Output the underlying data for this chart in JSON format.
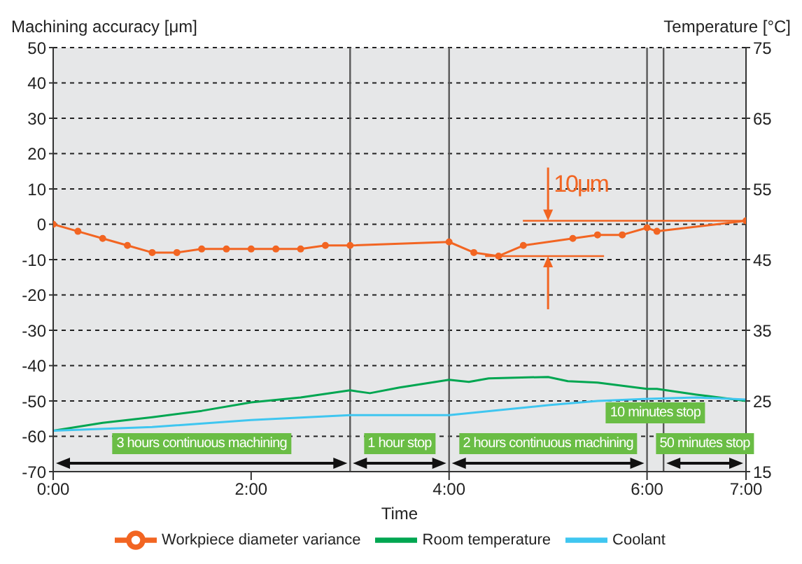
{
  "chart_data": {
    "type": "line",
    "ylabel": "Machining accuracy [μm]",
    "y2label": "Temperature [°C]",
    "xlabel": "Time",
    "xlim": [
      0,
      7
    ],
    "xticks": [
      {
        "value": 0,
        "label": "0:00"
      },
      {
        "value": 2,
        "label": "2:00"
      },
      {
        "value": 4,
        "label": "4:00"
      },
      {
        "value": 6,
        "label": "6:00"
      },
      {
        "value": 7,
        "label": "7:00"
      }
    ],
    "ylim": [
      -70,
      50
    ],
    "yticks": [
      -70,
      -60,
      -50,
      -40,
      -30,
      -20,
      -10,
      0,
      10,
      20,
      30,
      40,
      50
    ],
    "y2lim": [
      15,
      75
    ],
    "y2ticks": [
      15,
      25,
      35,
      45,
      55,
      65,
      75
    ],
    "grid": "y",
    "legend": "bottom",
    "line_style": "solid",
    "series": [
      {
        "name": "Workpiece diameter variance",
        "color": "#f26522",
        "marker": "circle",
        "axis": "y",
        "x": [
          0,
          0.25,
          0.5,
          0.75,
          1,
          1.25,
          1.5,
          1.75,
          2,
          2.25,
          2.5,
          2.75,
          3,
          4,
          4.25,
          4.5,
          4.75,
          5.25,
          5.5,
          5.75,
          6,
          6.1,
          7
        ],
        "values": [
          0,
          -2,
          -4,
          -6,
          -8,
          -8,
          -7,
          -7,
          -7,
          -7,
          -7,
          -6,
          -6,
          -5,
          -8,
          -9,
          -6,
          -4,
          -3,
          -3,
          -1,
          -2,
          1
        ]
      },
      {
        "name": "Room temperature",
        "color": "#00a651",
        "marker": "none",
        "axis": "y2",
        "x": [
          0,
          0.5,
          1,
          1.5,
          2,
          2.5,
          3,
          3.2,
          3.5,
          4,
          4.2,
          4.4,
          5,
          5.2,
          5.5,
          6,
          6.1,
          6.5,
          7
        ],
        "values": [
          20.8,
          21.9,
          22.7,
          23.6,
          24.8,
          25.5,
          26.5,
          26.1,
          26.9,
          28,
          27.7,
          28.2,
          28.4,
          27.8,
          27.6,
          26.7,
          26.7,
          25.9,
          25
        ]
      },
      {
        "name": "Coolant",
        "color": "#3fc6f0",
        "marker": "none",
        "axis": "y2",
        "x": [
          0,
          1,
          2,
          3,
          4,
          5,
          5.5,
          6,
          6.5,
          7
        ],
        "values": [
          20.8,
          21.3,
          22.3,
          23,
          23,
          24.4,
          25,
          25.3,
          25.5,
          25.2
        ]
      }
    ],
    "ref_lines": [
      {
        "axis": "x",
        "value": 3,
        "color": "#595959"
      },
      {
        "axis": "x",
        "value": 4,
        "color": "#595959"
      },
      {
        "axis": "x",
        "value": 6,
        "color": "#595959"
      },
      {
        "axis": "x",
        "value": 6.167,
        "color": "#595959"
      }
    ],
    "annotations": [
      "3 hours continuous machining",
      "1 hour stop",
      "2 hours continuous machining",
      "10 minutes stop",
      "50 minutes stop",
      "10μm"
    ]
  }
}
